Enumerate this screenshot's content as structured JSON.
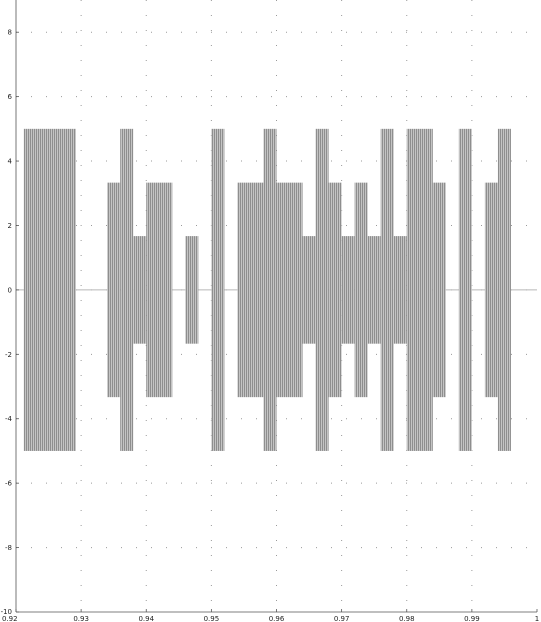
{
  "chart_data": {
    "type": "area",
    "title": "",
    "xlabel": "",
    "ylabel": "",
    "xlim": [
      0.92,
      1.0
    ],
    "ylim": [
      -10,
      9
    ],
    "grid": true,
    "legend": "none",
    "x_ticks": [
      "0.92",
      "0.93",
      "0.94",
      "0.95",
      "0.96",
      "0.97",
      "0.98",
      "0.99",
      "1"
    ],
    "y_ticks": [
      "8",
      "6",
      "4",
      "2",
      "0",
      "-2",
      "-4",
      "-6",
      "-8",
      "-10"
    ],
    "series": [
      {
        "fill_color": "#b0b0b0",
        "segments": [
          {
            "x0": 0.9212,
            "x1": 0.9292,
            "amp": 5.0
          },
          {
            "x0": 0.934,
            "x1": 0.936,
            "amp": 3.33
          },
          {
            "x0": 0.936,
            "x1": 0.938,
            "amp": 5.0
          },
          {
            "x0": 0.938,
            "x1": 0.94,
            "amp": 1.67
          },
          {
            "x0": 0.94,
            "x1": 0.944,
            "amp": 3.33
          },
          {
            "x0": 0.946,
            "x1": 0.948,
            "amp": 1.67
          },
          {
            "x0": 0.95,
            "x1": 0.952,
            "amp": 5.0
          },
          {
            "x0": 0.954,
            "x1": 0.958,
            "amp": 3.33
          },
          {
            "x0": 0.958,
            "x1": 0.96,
            "amp": 5.0
          },
          {
            "x0": 0.96,
            "x1": 0.964,
            "amp": 3.33
          },
          {
            "x0": 0.964,
            "x1": 0.966,
            "amp": 1.67
          },
          {
            "x0": 0.966,
            "x1": 0.968,
            "amp": 5.0
          },
          {
            "x0": 0.968,
            "x1": 0.97,
            "amp": 3.33
          },
          {
            "x0": 0.97,
            "x1": 0.972,
            "amp": 1.67
          },
          {
            "x0": 0.972,
            "x1": 0.974,
            "amp": 3.33
          },
          {
            "x0": 0.974,
            "x1": 0.976,
            "amp": 1.67
          },
          {
            "x0": 0.976,
            "x1": 0.978,
            "amp": 5.0
          },
          {
            "x0": 0.978,
            "x1": 0.98,
            "amp": 1.67
          },
          {
            "x0": 0.98,
            "x1": 0.984,
            "amp": 5.0
          },
          {
            "x0": 0.984,
            "x1": 0.986,
            "amp": 3.33
          },
          {
            "x0": 0.988,
            "x1": 0.99,
            "amp": 5.0
          },
          {
            "x0": 0.992,
            "x1": 0.994,
            "amp": 3.33
          },
          {
            "x0": 0.994,
            "x1": 0.996,
            "amp": 5.0
          }
        ]
      }
    ]
  }
}
